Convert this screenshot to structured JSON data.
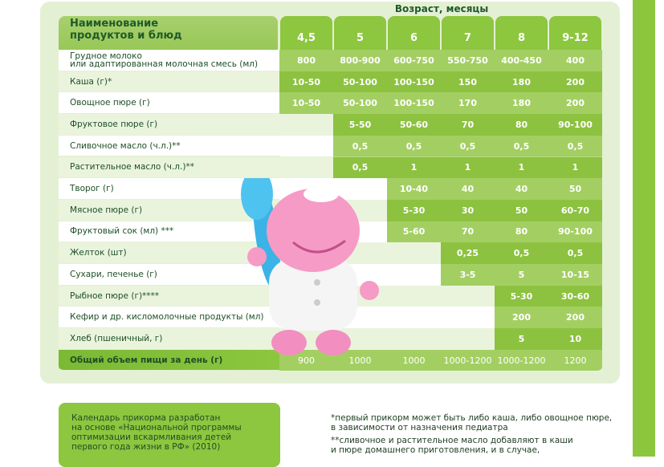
{
  "age_title": "Возраст, месяцы",
  "name_header": "Наименование\nпродуктов и блюд",
  "ages": [
    "4,5",
    "5",
    "6",
    "7",
    "8",
    "9-12"
  ],
  "rows": [
    {
      "label": "Грудное молоко\nили адаптированная молочная смесь (мл)",
      "start": 0,
      "values": [
        "800",
        "800-900",
        "600-750",
        "550-750",
        "400-450",
        "400"
      ]
    },
    {
      "label": "Каша (г)*",
      "start": 0,
      "values": [
        "10-50",
        "50-100",
        "100-150",
        "150",
        "180",
        "200"
      ]
    },
    {
      "label": "Овощное пюре (г)",
      "start": 0,
      "values": [
        "10-50",
        "50-100",
        "100-150",
        "170",
        "180",
        "200"
      ]
    },
    {
      "label": "Фруктовое пюре (г)",
      "start": 1,
      "values": [
        "5-50",
        "50-60",
        "70",
        "80",
        "90-100"
      ]
    },
    {
      "label": "Сливочное масло (ч.л.)**",
      "start": 1,
      "values": [
        "0,5",
        "0,5",
        "0,5",
        "0,5",
        "0,5"
      ]
    },
    {
      "label": "Растительное масло (ч.л.)**",
      "start": 1,
      "values": [
        "0,5",
        "1",
        "1",
        "1",
        "1"
      ]
    },
    {
      "label": "Творог (г)",
      "start": 2,
      "values": [
        "10-40",
        "40",
        "40",
        "50"
      ]
    },
    {
      "label": "Мясное пюре (г)",
      "start": 2,
      "values": [
        "5-30",
        "30",
        "50",
        "60-70"
      ]
    },
    {
      "label": "Фруктовый сок (мл) ***",
      "start": 2,
      "values": [
        "5-60",
        "70",
        "80",
        "90-100"
      ]
    },
    {
      "label": "Желток (шт)",
      "start": 3,
      "values": [
        "0,25",
        "0,5",
        "0,5"
      ]
    },
    {
      "label": "Сухари, печенье (г)",
      "start": 3,
      "values": [
        "3-5",
        "5",
        "10-15"
      ]
    },
    {
      "label": "Рыбное пюре (г)****",
      "start": 4,
      "values": [
        "5-30",
        "30-60"
      ]
    },
    {
      "label": "Кефир и др. кисломолочные продукты (мл)",
      "start": 4,
      "values": [
        "200",
        "200"
      ]
    },
    {
      "label": "Хлеб (пшеничный, г)",
      "start": 4,
      "values": [
        "5",
        "10"
      ]
    }
  ],
  "total": {
    "label": "Общий объем пищи за день (г)",
    "values": [
      "900",
      "1000",
      "1000",
      "1000-1200",
      "1000-1200",
      "1200"
    ]
  },
  "note": "Календарь прикорма разработан\nна основе «Национальной программы\nоптимизации вскармливания детей\nпервого года жизни в РФ» (2010)",
  "footnotes": [
    "*первый прикорм может быть либо каша, либо овощное пюре,\nв зависимости от назначения педиатра",
    "**сливочное и растительное масло добавляют в каши\nи пюре домашнего приготовления, и в случае,"
  ],
  "colors": {
    "header": "#8dc63f",
    "dark_cell": "#8cc23f",
    "light_cell": "#a3cf62",
    "pale": "#eaf4dd",
    "accent_strip": "#8cc63f"
  }
}
